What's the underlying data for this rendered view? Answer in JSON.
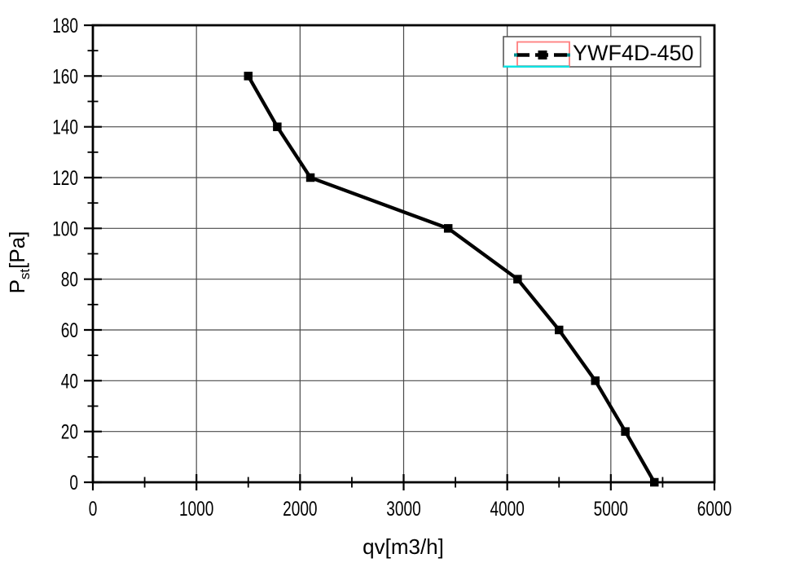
{
  "chart_data": {
    "type": "line",
    "title": "",
    "xlabel": "qv[m3/h]",
    "ylabel": "Pst[Pa]",
    "ylabel_parts": {
      "main": "P",
      "sub": "st",
      "unit": "[Pa]"
    },
    "xlim": [
      0,
      6000
    ],
    "ylim": [
      0,
      180
    ],
    "x_ticks": [
      0,
      1000,
      2000,
      3000,
      4000,
      5000,
      6000
    ],
    "x_minor_ticks": [
      500,
      1500,
      2500,
      3500,
      4500,
      5500
    ],
    "y_ticks": [
      0,
      20,
      40,
      60,
      80,
      100,
      120,
      140,
      160,
      180
    ],
    "y_minor_ticks": [
      10,
      30,
      50,
      70,
      90,
      110,
      130,
      150,
      170
    ],
    "grid": "major-both",
    "legend_position": "top-right",
    "series": [
      {
        "name": "YWF4D-450",
        "marker": "filled-square",
        "line": "solid-thick",
        "color": "#000000",
        "x": [
          1500,
          1780,
          2100,
          3430,
          4100,
          4500,
          4850,
          5140,
          5420
        ],
        "y": [
          160,
          140,
          120,
          100,
          80,
          60,
          40,
          20,
          0
        ]
      }
    ]
  },
  "colors": {
    "background": "#ffffff",
    "axis_and_frame": "#000000",
    "gridline": "#4a4a4a",
    "tick_text": "#000000",
    "series_line": "#000000",
    "legend_border": "#4d4d4d",
    "legend_selection_border": "#ff7e7e",
    "legend_selection_underline": "#00e6e6",
    "legend_handle": "#008b8b"
  }
}
